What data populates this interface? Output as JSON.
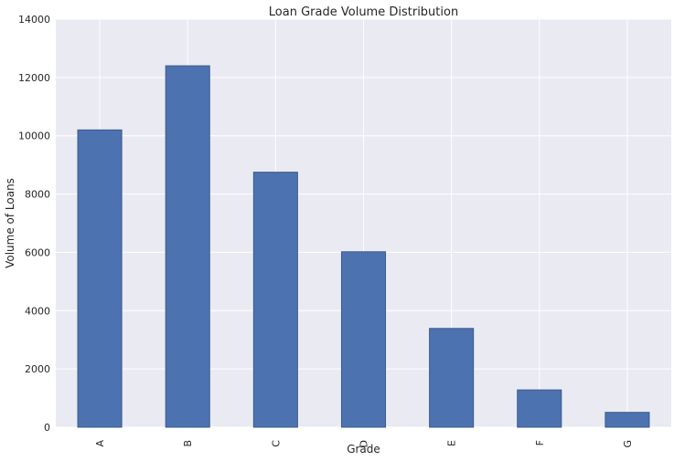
{
  "chart_data": {
    "type": "bar",
    "title": "Loan Grade Volume Distribution",
    "xlabel": "Grade",
    "ylabel": "Volume of Loans",
    "categories": [
      "A",
      "B",
      "C",
      "D",
      "E",
      "F",
      "G"
    ],
    "values": [
      10200,
      12400,
      8750,
      6020,
      3390,
      1280,
      510
    ],
    "ylim": [
      0,
      14000
    ],
    "yticks": [
      "0",
      "2000",
      "4000",
      "6000",
      "8000",
      "10000",
      "12000",
      "14000"
    ],
    "grid": true,
    "legend": "none",
    "colors": {
      "bar": "#4c72b0",
      "bar_edge": "#3d5a8c",
      "plot_background": "#eaeaf2",
      "grid": "#ffffff",
      "text": "#262626"
    }
  }
}
